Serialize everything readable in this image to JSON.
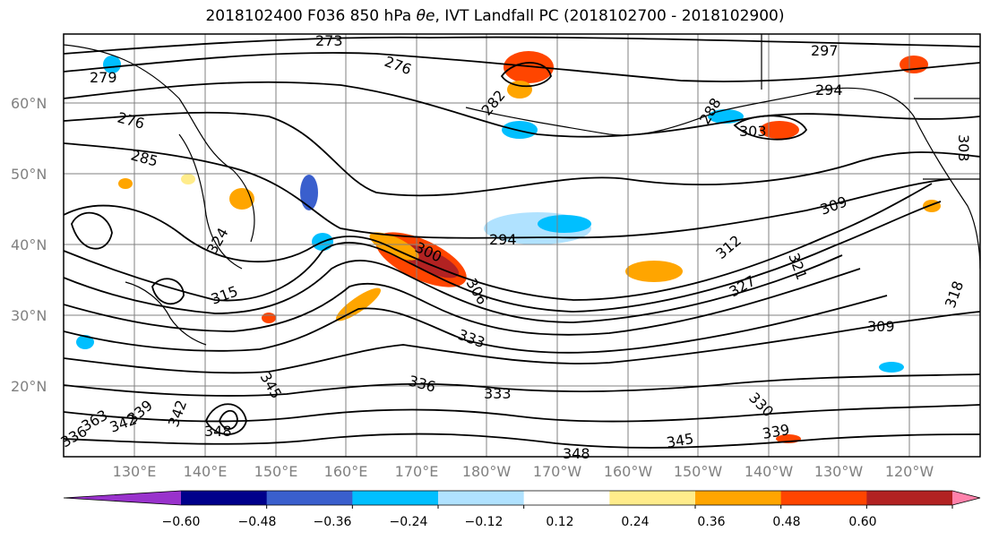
{
  "title_main": "2018102400 F036 850 hPa ",
  "title_symbol": "θe",
  "title_rest": ", IVT Landfall PC (2018102700 - 2018102900)",
  "lat_labels": [
    "60°N",
    "50°N",
    "40°N",
    "30°N",
    "20°N"
  ],
  "lon_labels": [
    "130°E",
    "140°E",
    "150°E",
    "160°E",
    "170°E",
    "180°W",
    "170°W",
    "160°W",
    "150°W",
    "140°W",
    "130°W",
    "120°W"
  ],
  "contour_labels": [
    "273",
    "276",
    "279",
    "276",
    "285",
    "282",
    "288",
    "297",
    "294",
    "303",
    "309",
    "303",
    "294",
    "300",
    "306",
    "312",
    "321",
    "327",
    "309",
    "318",
    "315",
    "324",
    "333",
    "336",
    "333",
    "345",
    "342",
    "348",
    "339",
    "342",
    "348",
    "345",
    "339",
    "330",
    "363",
    "336"
  ],
  "colorbar": {
    "colors": [
      "#9932cc",
      "#00008b",
      "#3a5fcd",
      "#00bfff",
      "#b0e2ff",
      "#ffffff",
      "#ffec8b",
      "#ffa500",
      "#ff4500",
      "#b22222",
      "#ff82ab"
    ],
    "tick_labels": [
      "−0.60",
      "−0.48",
      "−0.36",
      "−0.24",
      "−0.12",
      "0.12",
      "0.24",
      "0.36",
      "0.48",
      "0.60"
    ]
  },
  "colors": {
    "contour": "#000000",
    "grid": "#808080",
    "coast": "#000000"
  }
}
